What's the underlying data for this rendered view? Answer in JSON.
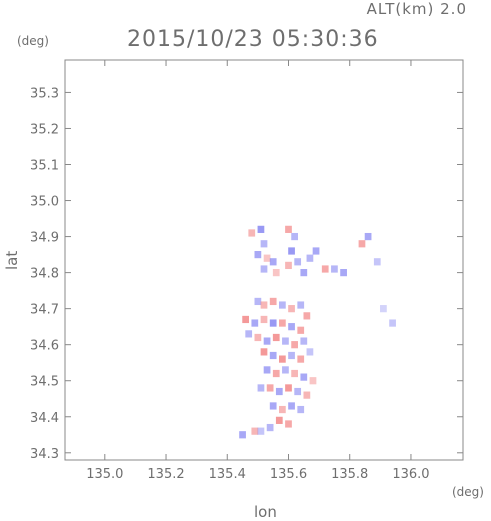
{
  "header": {
    "altitude_label": "ALT(km) 2.0",
    "timestamp": "2015/10/23 05:30:36",
    "y_unit": "(deg)",
    "x_unit": "(deg)"
  },
  "chart_data": {
    "type": "heatmap",
    "title": "2015/10/23 05:30:36",
    "subtitle": "ALT(km) 2.0",
    "xlabel": "lon",
    "ylabel": "lat",
    "xlim": [
      134.87,
      136.17
    ],
    "ylim": [
      34.28,
      35.39
    ],
    "xticks": [
      135.0,
      135.2,
      135.4,
      135.6,
      135.8,
      136.0
    ],
    "xtick_labels": [
      "135.0",
      "135.2",
      "135.4",
      "135.6",
      "135.8",
      "136.0"
    ],
    "yticks": [
      34.3,
      34.4,
      34.5,
      34.6,
      34.7,
      34.8,
      34.9,
      35.0,
      35.1,
      35.2,
      35.3
    ],
    "ytick_labels": [
      "34.3",
      "34.4",
      "34.5",
      "34.6",
      "34.7",
      "34.8",
      "34.9",
      "35.0",
      "35.1",
      "35.2",
      "35.3"
    ],
    "grid": false,
    "colors": {
      "positive": "#f06e6e",
      "negative": "#6e6ef0",
      "axis": "#888888"
    },
    "cells": [
      {
        "lon": 135.51,
        "lat": 34.92,
        "sign": "neg",
        "weight": 0.7
      },
      {
        "lon": 135.48,
        "lat": 34.91,
        "sign": "pos",
        "weight": 0.5
      },
      {
        "lon": 135.52,
        "lat": 34.88,
        "sign": "neg",
        "weight": 0.5
      },
      {
        "lon": 135.5,
        "lat": 34.85,
        "sign": "neg",
        "weight": 0.6
      },
      {
        "lon": 135.53,
        "lat": 34.84,
        "sign": "pos",
        "weight": 0.4
      },
      {
        "lon": 135.55,
        "lat": 34.83,
        "sign": "neg",
        "weight": 0.6
      },
      {
        "lon": 135.52,
        "lat": 34.81,
        "sign": "neg",
        "weight": 0.5
      },
      {
        "lon": 135.56,
        "lat": 34.8,
        "sign": "pos",
        "weight": 0.4
      },
      {
        "lon": 135.6,
        "lat": 34.92,
        "sign": "pos",
        "weight": 0.6
      },
      {
        "lon": 135.62,
        "lat": 34.9,
        "sign": "neg",
        "weight": 0.5
      },
      {
        "lon": 135.61,
        "lat": 34.86,
        "sign": "neg",
        "weight": 0.7
      },
      {
        "lon": 135.63,
        "lat": 34.83,
        "sign": "neg",
        "weight": 0.5
      },
      {
        "lon": 135.6,
        "lat": 34.82,
        "sign": "pos",
        "weight": 0.5
      },
      {
        "lon": 135.65,
        "lat": 34.8,
        "sign": "neg",
        "weight": 0.6
      },
      {
        "lon": 135.67,
        "lat": 34.84,
        "sign": "neg",
        "weight": 0.5
      },
      {
        "lon": 135.69,
        "lat": 34.86,
        "sign": "neg",
        "weight": 0.6
      },
      {
        "lon": 135.72,
        "lat": 34.81,
        "sign": "pos",
        "weight": 0.6
      },
      {
        "lon": 135.75,
        "lat": 34.81,
        "sign": "neg",
        "weight": 0.5
      },
      {
        "lon": 135.78,
        "lat": 34.8,
        "sign": "neg",
        "weight": 0.6
      },
      {
        "lon": 135.86,
        "lat": 34.9,
        "sign": "neg",
        "weight": 0.6
      },
      {
        "lon": 135.84,
        "lat": 34.88,
        "sign": "pos",
        "weight": 0.6
      },
      {
        "lon": 135.89,
        "lat": 34.83,
        "sign": "neg",
        "weight": 0.4
      },
      {
        "lon": 135.91,
        "lat": 34.7,
        "sign": "neg",
        "weight": 0.3
      },
      {
        "lon": 135.94,
        "lat": 34.66,
        "sign": "neg",
        "weight": 0.4
      },
      {
        "lon": 135.5,
        "lat": 34.72,
        "sign": "neg",
        "weight": 0.5
      },
      {
        "lon": 135.52,
        "lat": 34.71,
        "sign": "pos",
        "weight": 0.5
      },
      {
        "lon": 135.55,
        "lat": 34.72,
        "sign": "pos",
        "weight": 0.6
      },
      {
        "lon": 135.58,
        "lat": 34.71,
        "sign": "neg",
        "weight": 0.5
      },
      {
        "lon": 135.61,
        "lat": 34.7,
        "sign": "pos",
        "weight": 0.5
      },
      {
        "lon": 135.64,
        "lat": 34.71,
        "sign": "neg",
        "weight": 0.5
      },
      {
        "lon": 135.66,
        "lat": 34.68,
        "sign": "pos",
        "weight": 0.6
      },
      {
        "lon": 135.46,
        "lat": 34.67,
        "sign": "pos",
        "weight": 0.7
      },
      {
        "lon": 135.49,
        "lat": 34.66,
        "sign": "neg",
        "weight": 0.6
      },
      {
        "lon": 135.52,
        "lat": 34.67,
        "sign": "pos",
        "weight": 0.5
      },
      {
        "lon": 135.55,
        "lat": 34.66,
        "sign": "neg",
        "weight": 0.7
      },
      {
        "lon": 135.58,
        "lat": 34.66,
        "sign": "pos",
        "weight": 0.6
      },
      {
        "lon": 135.61,
        "lat": 34.65,
        "sign": "neg",
        "weight": 0.6
      },
      {
        "lon": 135.64,
        "lat": 34.64,
        "sign": "pos",
        "weight": 0.6
      },
      {
        "lon": 135.47,
        "lat": 34.63,
        "sign": "neg",
        "weight": 0.5
      },
      {
        "lon": 135.5,
        "lat": 34.62,
        "sign": "pos",
        "weight": 0.5
      },
      {
        "lon": 135.53,
        "lat": 34.61,
        "sign": "neg",
        "weight": 0.6
      },
      {
        "lon": 135.56,
        "lat": 34.62,
        "sign": "pos",
        "weight": 0.7
      },
      {
        "lon": 135.59,
        "lat": 34.61,
        "sign": "neg",
        "weight": 0.5
      },
      {
        "lon": 135.62,
        "lat": 34.6,
        "sign": "pos",
        "weight": 0.6
      },
      {
        "lon": 135.65,
        "lat": 34.61,
        "sign": "neg",
        "weight": 0.5
      },
      {
        "lon": 135.52,
        "lat": 34.58,
        "sign": "pos",
        "weight": 0.7
      },
      {
        "lon": 135.55,
        "lat": 34.57,
        "sign": "neg",
        "weight": 0.6
      },
      {
        "lon": 135.58,
        "lat": 34.56,
        "sign": "pos",
        "weight": 0.7
      },
      {
        "lon": 135.61,
        "lat": 34.57,
        "sign": "neg",
        "weight": 0.5
      },
      {
        "lon": 135.64,
        "lat": 34.56,
        "sign": "pos",
        "weight": 0.6
      },
      {
        "lon": 135.67,
        "lat": 34.58,
        "sign": "neg",
        "weight": 0.4
      },
      {
        "lon": 135.53,
        "lat": 34.53,
        "sign": "neg",
        "weight": 0.6
      },
      {
        "lon": 135.56,
        "lat": 34.52,
        "sign": "pos",
        "weight": 0.6
      },
      {
        "lon": 135.59,
        "lat": 34.53,
        "sign": "neg",
        "weight": 0.5
      },
      {
        "lon": 135.62,
        "lat": 34.52,
        "sign": "pos",
        "weight": 0.5
      },
      {
        "lon": 135.65,
        "lat": 34.51,
        "sign": "neg",
        "weight": 0.6
      },
      {
        "lon": 135.68,
        "lat": 34.5,
        "sign": "pos",
        "weight": 0.4
      },
      {
        "lon": 135.51,
        "lat": 34.48,
        "sign": "neg",
        "weight": 0.5
      },
      {
        "lon": 135.54,
        "lat": 34.48,
        "sign": "pos",
        "weight": 0.6
      },
      {
        "lon": 135.57,
        "lat": 34.47,
        "sign": "neg",
        "weight": 0.6
      },
      {
        "lon": 135.6,
        "lat": 34.48,
        "sign": "pos",
        "weight": 0.7
      },
      {
        "lon": 135.63,
        "lat": 34.47,
        "sign": "neg",
        "weight": 0.5
      },
      {
        "lon": 135.66,
        "lat": 34.46,
        "sign": "pos",
        "weight": 0.5
      },
      {
        "lon": 135.55,
        "lat": 34.43,
        "sign": "neg",
        "weight": 0.6
      },
      {
        "lon": 135.58,
        "lat": 34.42,
        "sign": "pos",
        "weight": 0.5
      },
      {
        "lon": 135.61,
        "lat": 34.43,
        "sign": "neg",
        "weight": 0.6
      },
      {
        "lon": 135.64,
        "lat": 34.42,
        "sign": "neg",
        "weight": 0.5
      },
      {
        "lon": 135.57,
        "lat": 34.39,
        "sign": "pos",
        "weight": 0.7
      },
      {
        "lon": 135.6,
        "lat": 34.38,
        "sign": "pos",
        "weight": 0.6
      },
      {
        "lon": 135.54,
        "lat": 34.37,
        "sign": "neg",
        "weight": 0.5
      },
      {
        "lon": 135.49,
        "lat": 34.36,
        "sign": "pos",
        "weight": 0.5
      },
      {
        "lon": 135.45,
        "lat": 34.35,
        "sign": "neg",
        "weight": 0.6
      },
      {
        "lon": 135.51,
        "lat": 34.36,
        "sign": "neg",
        "weight": 0.4
      }
    ]
  }
}
